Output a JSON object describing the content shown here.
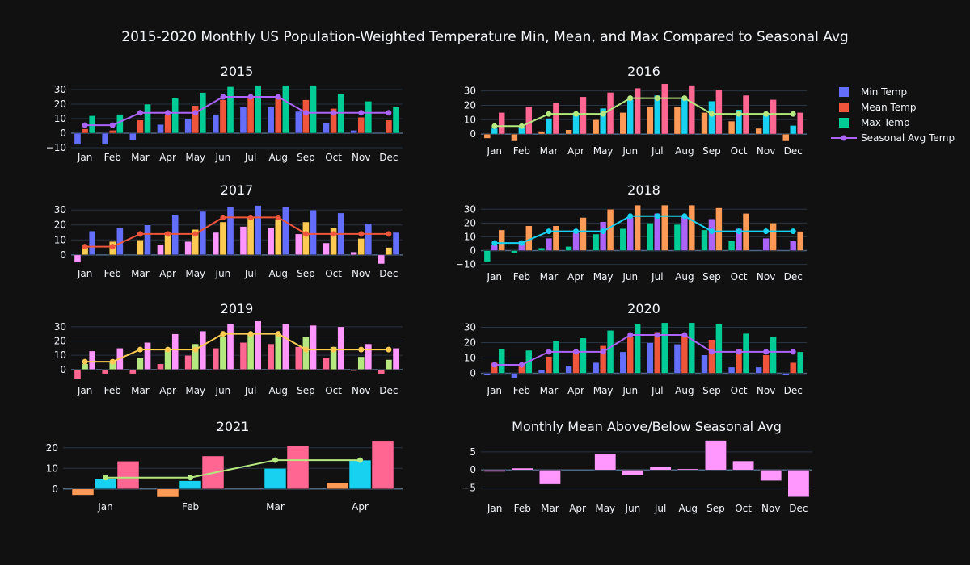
{
  "title": "2015-2020 Monthly US Population-Weighted Temperature Min, Mean, and Max Compared to Seasonal Avg",
  "legend": {
    "placement": "top-right",
    "items": [
      {
        "name": "Min Temp",
        "kind": "bar",
        "color": "#636efa"
      },
      {
        "name": "Mean Temp",
        "kind": "bar",
        "color": "#ef553b"
      },
      {
        "name": "Max Temp",
        "kind": "bar",
        "color": "#00cc96"
      },
      {
        "name": "Seasonal Avg Temp",
        "kind": "line",
        "color": "#ab63fa"
      }
    ]
  },
  "chart_data": [
    {
      "type": "bar",
      "title": "2015",
      "categories": [
        "Jan",
        "Feb",
        "Mar",
        "Apr",
        "May",
        "Jun",
        "Jul",
        "Aug",
        "Sep",
        "Oct",
        "Nov",
        "Dec"
      ],
      "ylim": [
        -10,
        35
      ],
      "yticks": [
        -10,
        0,
        10,
        20,
        30
      ],
      "colors": [
        "#636efa",
        "#ef553b",
        "#00cc96"
      ],
      "line_color": "#ab63fa",
      "series": [
        {
          "name": "Min Temp",
          "values": [
            -8,
            -8,
            -5,
            6,
            10,
            13,
            18,
            18,
            15,
            7,
            2,
            0
          ]
        },
        {
          "name": "Mean Temp",
          "values": [
            3,
            2,
            9,
            13,
            19,
            23,
            25,
            25,
            23,
            17,
            11,
            9
          ]
        },
        {
          "name": "Max Temp",
          "values": [
            12,
            13,
            20,
            24,
            28,
            32,
            33,
            33,
            33,
            27,
            22,
            18
          ]
        },
        {
          "name": "Seasonal Avg Temp",
          "kind": "line",
          "values": [
            5.5,
            5.5,
            14,
            14,
            14,
            25,
            25,
            25,
            14,
            14,
            14,
            14
          ]
        }
      ]
    },
    {
      "type": "bar",
      "title": "2016",
      "categories": [
        "Jan",
        "Feb",
        "Mar",
        "Apr",
        "May",
        "Jun",
        "Jul",
        "Aug",
        "Sep",
        "Oct",
        "Nov",
        "Dec"
      ],
      "ylim": [
        -5,
        36
      ],
      "yticks": [
        0,
        10,
        20,
        30
      ],
      "colors": [
        "#fe9a56",
        "#18d1f0",
        "#ff6692"
      ],
      "line_color": "#b6e880",
      "series": [
        {
          "name": "Min Temp",
          "values": [
            -3,
            -5,
            2,
            3,
            10,
            15,
            19,
            19,
            15,
            9,
            4,
            -5
          ]
        },
        {
          "name": "Mean Temp",
          "values": [
            4,
            5,
            11,
            15,
            18,
            24,
            27,
            25,
            23,
            17,
            14,
            6
          ]
        },
        {
          "name": "Max Temp",
          "values": [
            15,
            19,
            22,
            26,
            29,
            32,
            35,
            34,
            31,
            27,
            24,
            15
          ]
        },
        {
          "name": "Seasonal Avg Temp",
          "kind": "line",
          "values": [
            5.5,
            5.5,
            14,
            14,
            14,
            25,
            25,
            25,
            14,
            14,
            14,
            14
          ]
        }
      ]
    },
    {
      "type": "bar",
      "title": "2017",
      "categories": [
        "Jan",
        "Feb",
        "Mar",
        "Apr",
        "May",
        "Jun",
        "Jul",
        "Aug",
        "Sep",
        "Oct",
        "Nov",
        "Dec"
      ],
      "ylim": [
        -6,
        36
      ],
      "yticks": [
        0,
        10,
        20,
        30
      ],
      "colors": [
        "#ff97ff",
        "#fecb52",
        "#636efa"
      ],
      "line_color": "#ef553b",
      "series": [
        {
          "name": "Min Temp",
          "values": [
            -5,
            0,
            0,
            7,
            9,
            15,
            19,
            18,
            14,
            8,
            2,
            -6
          ]
        },
        {
          "name": "Mean Temp",
          "values": [
            5,
            9,
            10,
            15,
            17,
            22,
            25,
            24,
            22,
            18,
            11,
            5
          ]
        },
        {
          "name": "Max Temp",
          "values": [
            16,
            18,
            20,
            27,
            29,
            32,
            33,
            32,
            30,
            28,
            21,
            15
          ]
        },
        {
          "name": "Seasonal Avg Temp",
          "kind": "line",
          "values": [
            5.5,
            5.5,
            14,
            14,
            14,
            25,
            25,
            25,
            14,
            14,
            14,
            14
          ]
        }
      ]
    },
    {
      "type": "bar",
      "title": "2018",
      "categories": [
        "Jan",
        "Feb",
        "Mar",
        "Apr",
        "May",
        "Jun",
        "Jul",
        "Aug",
        "Sep",
        "Oct",
        "Nov",
        "Dec"
      ],
      "ylim": [
        -12,
        36
      ],
      "yticks": [
        -10,
        0,
        10,
        20,
        30
      ],
      "colors": [
        "#00cc96",
        "#ab63fa",
        "#fe9a56"
      ],
      "line_color": "#18d1f0",
      "series": [
        {
          "name": "Min Temp",
          "values": [
            -8,
            -2,
            2,
            3,
            12,
            16,
            20,
            19,
            15,
            7,
            0,
            0
          ]
        },
        {
          "name": "Mean Temp",
          "values": [
            4,
            7,
            9,
            13,
            21,
            24,
            27,
            25,
            23,
            16,
            9,
            7
          ]
        },
        {
          "name": "Max Temp",
          "values": [
            15,
            18,
            18,
            24,
            30,
            33,
            33,
            33,
            31,
            27,
            20,
            14
          ]
        },
        {
          "name": "Seasonal Avg Temp",
          "kind": "line",
          "values": [
            5.5,
            5.5,
            14,
            14,
            14,
            25,
            25,
            25,
            14,
            14,
            14,
            14
          ]
        }
      ]
    },
    {
      "type": "bar",
      "title": "2019",
      "categories": [
        "Jan",
        "Feb",
        "Mar",
        "Apr",
        "May",
        "Jun",
        "Jul",
        "Aug",
        "Sep",
        "Oct",
        "Nov",
        "Dec"
      ],
      "ylim": [
        -8,
        35
      ],
      "yticks": [
        0,
        10,
        20,
        30
      ],
      "colors": [
        "#ff6692",
        "#b6e880",
        "#ff97ff"
      ],
      "line_color": "#fecb52",
      "series": [
        {
          "name": "Min Temp",
          "values": [
            -7,
            -3,
            -3,
            4,
            10,
            15,
            19,
            18,
            16,
            8,
            -1,
            -3
          ]
        },
        {
          "name": "Mean Temp",
          "values": [
            4,
            6,
            8,
            14,
            18,
            23,
            26,
            25,
            23,
            16,
            9,
            7
          ]
        },
        {
          "name": "Max Temp",
          "values": [
            13,
            15,
            19,
            25,
            27,
            32,
            34,
            32,
            31,
            30,
            18,
            15
          ]
        },
        {
          "name": "Seasonal Avg Temp",
          "kind": "line",
          "values": [
            5.5,
            5.5,
            14,
            14,
            14,
            25,
            25,
            25,
            14,
            14,
            14,
            14
          ]
        }
      ]
    },
    {
      "type": "bar",
      "title": "2020",
      "categories": [
        "Jan",
        "Feb",
        "Mar",
        "Apr",
        "May",
        "Jun",
        "Jul",
        "Aug",
        "Sep",
        "Oct",
        "Nov",
        "Dec"
      ],
      "ylim": [
        -5,
        35
      ],
      "yticks": [
        0,
        10,
        20,
        30
      ],
      "colors": [
        "#636efa",
        "#ef553b",
        "#00cc96"
      ],
      "line_color": "#ab63fa",
      "series": [
        {
          "name": "Min Temp",
          "values": [
            -1,
            -3,
            2,
            5,
            7,
            14,
            20,
            19,
            12,
            4,
            4,
            -1
          ]
        },
        {
          "name": "Mean Temp",
          "values": [
            7,
            6,
            11,
            15,
            18,
            24,
            27,
            25,
            22,
            16,
            12,
            7
          ]
        },
        {
          "name": "Max Temp",
          "values": [
            16,
            15,
            21,
            23,
            28,
            32,
            33,
            33,
            32,
            26,
            24,
            14
          ]
        },
        {
          "name": "Seasonal Avg Temp",
          "kind": "line",
          "values": [
            5.5,
            5.5,
            14,
            14,
            14,
            25,
            25,
            25,
            14,
            14,
            14,
            14
          ]
        }
      ]
    },
    {
      "type": "bar",
      "title": "2021",
      "categories": [
        "Jan",
        "Feb",
        "Mar",
        "Apr"
      ],
      "ylim": [
        -4,
        25
      ],
      "yticks": [
        0,
        10,
        20
      ],
      "colors": [
        "#fe9a56",
        "#18d1f0",
        "#ff6692"
      ],
      "line_color": "#b6e880",
      "series": [
        {
          "name": "Min Temp",
          "values": [
            -3,
            -4,
            0,
            3
          ]
        },
        {
          "name": "Mean Temp",
          "values": [
            5,
            4,
            10,
            14
          ]
        },
        {
          "name": "Max Temp",
          "values": [
            13.5,
            16,
            21,
            23.5
          ]
        },
        {
          "name": "Seasonal Avg Temp",
          "kind": "line",
          "values": [
            5.5,
            5.5,
            14,
            14
          ]
        }
      ]
    },
    {
      "type": "bar",
      "title": "Monthly Mean Above/Below Seasonal Avg",
      "categories": [
        "Jan",
        "Feb",
        "Mar",
        "Apr",
        "May",
        "Jun",
        "Jul",
        "Aug",
        "Sep",
        "Oct",
        "Nov",
        "Dec"
      ],
      "ylim": [
        -8,
        9
      ],
      "yticks": [
        -5,
        0,
        5
      ],
      "colors": [
        "#ff97ff"
      ],
      "series": [
        {
          "name": "Mean Above/Below Seasonal Avg",
          "values": [
            -0.5,
            0.5,
            -4,
            0,
            4.5,
            -1.5,
            1,
            0.3,
            8.2,
            2.5,
            -3,
            -7.5
          ]
        }
      ]
    }
  ]
}
